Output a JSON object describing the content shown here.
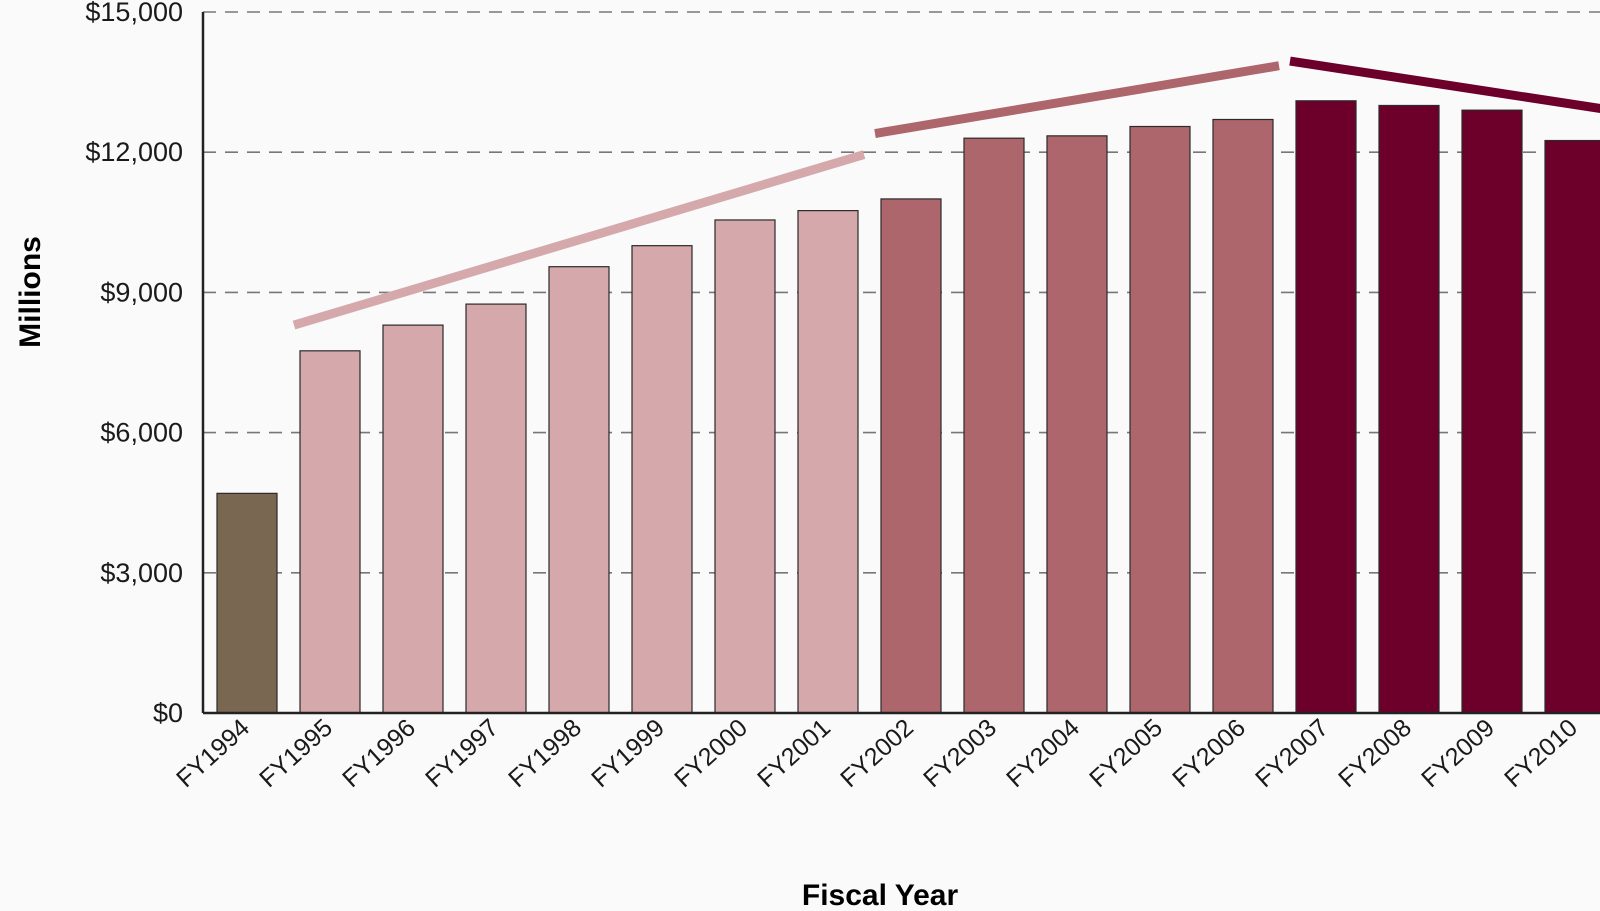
{
  "chart_data": {
    "type": "bar",
    "xlabel": "Fiscal Year",
    "ylabel": "Millions",
    "ylim": [
      0,
      15000
    ],
    "yticks": [
      0,
      3000,
      6000,
      9000,
      12000,
      15000
    ],
    "ytick_labels": [
      "$0",
      "$3,000",
      "$6,000",
      "$9,000",
      "$12,000",
      "$15,000"
    ],
    "grid": "horizontal dashed",
    "categories": [
      "FY1994",
      "FY1995",
      "FY1996",
      "FY1997",
      "FY1998",
      "FY1999",
      "FY2000",
      "FY2001",
      "FY2002",
      "FY2003",
      "FY2004",
      "FY2005",
      "FY2006",
      "FY2007",
      "FY2008",
      "FY2009",
      "FY2010"
    ],
    "values": [
      4700,
      7750,
      8300,
      8750,
      9550,
      10000,
      10550,
      10750,
      11000,
      12300,
      12350,
      12550,
      12700,
      13100,
      13000,
      12900,
      12250
    ],
    "bar_colors": [
      "#7a6751",
      "#d5a8ab",
      "#d5a8ab",
      "#d5a8ab",
      "#d5a8ab",
      "#d5a8ab",
      "#d5a8ab",
      "#d5a8ab",
      "#ad666c",
      "#ad666c",
      "#ad666c",
      "#ad666c",
      "#ad666c",
      "#6d002a",
      "#6d002a",
      "#6d002a",
      "#6d002a"
    ],
    "trend_lines": [
      {
        "color": "#d5a8ab",
        "from": [
          "FY1995",
          8300
        ],
        "to": [
          "FY2001",
          11950
        ]
      },
      {
        "color": "#ad666c",
        "from": [
          "FY2002",
          12400
        ],
        "to": [
          "FY2006",
          13850
        ]
      },
      {
        "color": "#6d002a",
        "from": [
          "FY2007",
          13950
        ],
        "to": [
          "FY2010",
          12900
        ]
      }
    ]
  }
}
